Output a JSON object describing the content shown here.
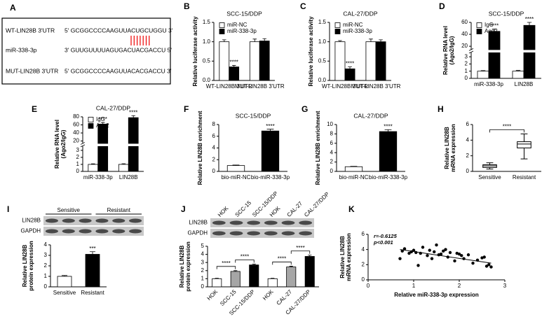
{
  "sequence_panel": {
    "panel": "A",
    "rows": [
      {
        "name": "WT-LIN28B 3'UTR",
        "sequence": "5' GCGGCCCCAAGUUACUGCUGGU 3'"
      },
      {
        "name": "miR-338-3p",
        "sequence": "3' GUUGUUUUAGUGACUACGACCU 5'"
      },
      {
        "name": "MUT-LIN28B 3'UTR",
        "sequence": "5' GCGGCCCCAAGUUACACGACCU 3'"
      }
    ]
  },
  "chart_data": [
    {
      "type": "bar",
      "panel": "B",
      "title": "SCC-15/DDP",
      "y_label": "Relative luciferase activity",
      "categories": [
        "WT-LIN28B 3'UTR",
        "MUT-LIN28B 3'UTR"
      ],
      "series": [
        {
          "name": "miR-NC",
          "color": "#ffffff",
          "values": [
            1.0,
            1.0
          ],
          "errors": [
            0.05,
            0.07
          ]
        },
        {
          "name": "miR-338-3p",
          "color": "#000000",
          "values": [
            0.35,
            1.02
          ],
          "errors": [
            0.04,
            0.06
          ]
        }
      ],
      "ylim": [
        0,
        1.5
      ],
      "yticks": [
        {
          "value": 0,
          "label": "0.0"
        },
        0.5,
        {
          "value": 1,
          "label": "1.0"
        },
        1.5
      ],
      "significance": [
        {
          "label": "****",
          "category": 0,
          "series": 1
        }
      ]
    },
    {
      "type": "bar",
      "panel": "C",
      "title": "CAL-27/DDP",
      "y_label": "Relative luciferase activity",
      "categories": [
        "WT-LIN28B 3'UTR",
        "MUT-LIN28B 3'UTR"
      ],
      "series": [
        {
          "name": "miR-NC",
          "color": "#ffffff",
          "values": [
            1.0,
            1.0
          ],
          "errors": [
            0.03,
            0.07
          ]
        },
        {
          "name": "miR-338-3p",
          "color": "#000000",
          "values": [
            0.3,
            1.0
          ],
          "errors": [
            0.05,
            0.05
          ]
        }
      ],
      "ylim": [
        0,
        1.5
      ],
      "yticks": [
        {
          "value": 0,
          "label": "0.0"
        },
        0.5,
        {
          "value": 1,
          "label": "1.0"
        },
        1.5
      ],
      "significance": [
        {
          "label": "****",
          "category": 0,
          "series": 1
        }
      ]
    },
    {
      "type": "bar",
      "panel": "D",
      "title": "SCC-15/DDP",
      "y_label": [
        "Relative RNA level",
        "(Ago2/IgG)"
      ],
      "categories": [
        "miR-338-3p",
        "LIN28B"
      ],
      "series": [
        {
          "name": "IgG",
          "color": "#ffffff",
          "values": [
            1.0,
            1.0
          ],
          "errors": [
            0.08,
            0.1
          ]
        },
        {
          "name": "Ago2",
          "color": "#000000",
          "values": [
            45,
            55
          ],
          "errors": [
            4,
            5
          ]
        }
      ],
      "ylim": [
        0,
        60
      ],
      "y_break": [
        3.5,
        15
      ],
      "yticks": [
        0,
        1,
        2,
        3,
        20,
        40,
        60
      ],
      "significance": [
        {
          "label": "****",
          "category": 0,
          "series": 1
        },
        {
          "label": "****",
          "category": 1,
          "series": 1
        }
      ]
    },
    {
      "type": "bar",
      "panel": "E",
      "title": "CAL-27/DDP",
      "y_label": [
        "Relative RNA level",
        "(Ago2/IgG)"
      ],
      "categories": [
        "miR-338-3p",
        "LIN28B"
      ],
      "series": [
        {
          "name": "IgG",
          "color": "#ffffff",
          "values": [
            1.0,
            1.0
          ],
          "errors": [
            0.08,
            0.1
          ]
        },
        {
          "name": "Ago2",
          "color": "#000000",
          "values": [
            62,
            78
          ],
          "errors": [
            4,
            5
          ]
        }
      ],
      "ylim": [
        0,
        80
      ],
      "y_break": [
        3.5,
        15
      ],
      "yticks": [
        0,
        1,
        2,
        3,
        20,
        40,
        60,
        80
      ],
      "significance": [
        {
          "label": "****",
          "category": 0,
          "series": 1
        },
        {
          "label": "****",
          "category": 1,
          "series": 1
        }
      ]
    },
    {
      "type": "bar",
      "panel": "F",
      "title": "SCC-15/DDP",
      "y_label": "Relative LIN28B enrichment",
      "categories": [
        "bio-miR-NC",
        "bio-miR-338-3p"
      ],
      "values": [
        1.0,
        6.9
      ],
      "errors": [
        0.08,
        0.3
      ],
      "colors": [
        "#ffffff",
        "#000000"
      ],
      "ylim": [
        0,
        8
      ],
      "yticks": [
        0,
        2,
        4,
        6,
        8
      ],
      "significance": [
        {
          "label": "****",
          "category": 1
        }
      ]
    },
    {
      "type": "bar",
      "panel": "G",
      "title": "CAL-27/DDP",
      "y_label": "Relative LIN28B enrichment",
      "categories": [
        "bio-miR-NC",
        "bio-miR-338-3p"
      ],
      "values": [
        1.0,
        8.5
      ],
      "errors": [
        0.08,
        0.4
      ],
      "colors": [
        "#ffffff",
        "#000000"
      ],
      "ylim": [
        0,
        10
      ],
      "yticks": [
        0,
        2,
        4,
        6,
        8,
        10
      ],
      "significance": [
        {
          "label": "****",
          "category": 1
        }
      ]
    },
    {
      "type": "box",
      "panel": "H",
      "y_label": [
        "Relative LIN28B",
        "mRNA expression"
      ],
      "categories": [
        "Sensitive",
        "Resistant"
      ],
      "boxes": [
        {
          "min": 0.3,
          "q1": 0.5,
          "median": 0.7,
          "q3": 0.85,
          "max": 1.1
        },
        {
          "min": 1.6,
          "q1": 3.0,
          "median": 3.5,
          "q3": 3.8,
          "max": 4.8
        }
      ],
      "ylim": [
        0,
        6
      ],
      "yticks": [
        0,
        2,
        4,
        6
      ],
      "significance": [
        {
          "label": "****",
          "from": 0,
          "to": 1
        }
      ]
    },
    {
      "type": "bar",
      "panel": "I",
      "y_label": [
        "Relative LIN28B",
        "protein expression"
      ],
      "blot": {
        "groups": [
          "Sensitive",
          "Resistant"
        ],
        "rows": [
          "LIN28B",
          "GAPDH"
        ]
      },
      "categories": [
        "Sensitive",
        "Resistant"
      ],
      "values": [
        1.0,
        3.1
      ],
      "errors": [
        0.08,
        0.25
      ],
      "colors": [
        "#ffffff",
        "#000000"
      ],
      "ylim": [
        0,
        4
      ],
      "yticks": [
        0,
        1,
        2,
        3,
        4
      ],
      "significance": [
        {
          "label": "***",
          "category": 1
        }
      ]
    },
    {
      "type": "bar",
      "panel": "J",
      "y_label": [
        "Relative LIN28B",
        "protein expression"
      ],
      "blot": {
        "lanes": [
          "HOK",
          "SCC-15",
          "SCC-15/DDP",
          "HOK",
          "CAL-27",
          "CAL-27/DDP"
        ],
        "rows": [
          "LIN28B",
          "GAPDH"
        ]
      },
      "categories": [
        "HOK",
        "SCC-15",
        "SCC-15/DDP",
        "HOK",
        "CAL-27",
        "CAL-27/DDP"
      ],
      "values": [
        1.0,
        1.9,
        2.7,
        1.0,
        2.45,
        3.75
      ],
      "errors": [
        0.05,
        0.1,
        0.1,
        0.05,
        0.1,
        0.15
      ],
      "colors": [
        "#ffffff",
        "#a6a6a6",
        "#000000",
        "#ffffff",
        "#a6a6a6",
        "#000000"
      ],
      "ylim": [
        0,
        5
      ],
      "yticks": [
        0,
        1,
        2,
        3,
        4,
        5
      ],
      "significance": [
        {
          "label": "****",
          "from": 0,
          "to": 1
        },
        {
          "label": "****",
          "from": 1,
          "to": 2
        },
        {
          "label": "****",
          "from": 3,
          "to": 4
        },
        {
          "label": "****",
          "from": 4,
          "to": 5
        }
      ]
    },
    {
      "type": "scatter",
      "panel": "K",
      "x_label": "Relative miR-338-3p expression",
      "y_label": [
        "Relative LIN28B",
        "mRNA expression"
      ],
      "annotations": [
        "r=-0.6125",
        "p<0.001"
      ],
      "x": [
        0.7,
        0.75,
        0.8,
        0.9,
        0.95,
        1.0,
        1.05,
        1.1,
        1.15,
        1.2,
        1.3,
        1.35,
        1.4,
        1.45,
        1.5,
        1.55,
        1.6,
        1.65,
        1.7,
        1.75,
        1.8,
        1.9,
        1.95,
        2.0,
        2.05,
        2.1,
        2.2,
        2.3,
        2.4,
        2.5,
        2.55,
        2.6,
        2.65,
        2.7
      ],
      "y": [
        2.8,
        3.8,
        4.1,
        3.5,
        3.7,
        3.9,
        3.6,
        1.9,
        3.5,
        4.3,
        3.2,
        3.9,
        2.8,
        3.7,
        4.6,
        3.3,
        3.4,
        3.8,
        4.0,
        3.0,
        3.6,
        2.5,
        3.5,
        3.4,
        3.2,
        2.8,
        3.3,
        2.2,
        2.6,
        2.9,
        3.0,
        1.8,
        2.0,
        1.7
      ],
      "color": "#000000",
      "trend_line": {
        "x": [
          0.7,
          2.7
        ],
        "y": [
          4.0,
          2.2
        ]
      },
      "xlim": [
        0,
        3
      ],
      "xticks": [
        0,
        1,
        2,
        3
      ],
      "ylim": [
        0,
        6
      ],
      "yticks": [
        0,
        2,
        4,
        6
      ]
    }
  ]
}
